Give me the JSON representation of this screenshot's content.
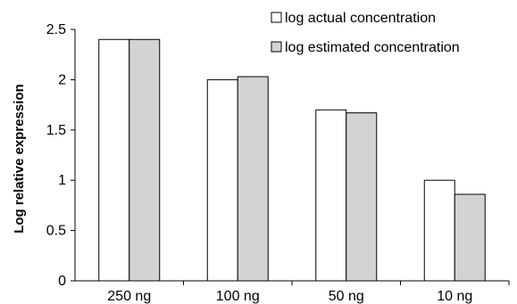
{
  "chart_data": {
    "type": "bar",
    "categories": [
      "250 ng",
      "100 ng",
      "50 ng",
      "10 ng"
    ],
    "series": [
      {
        "name": "log actual concentration",
        "values": [
          2.4,
          2.0,
          1.7,
          1.0
        ],
        "color": "#ffffff"
      },
      {
        "name": "log estimated concentration",
        "values": [
          2.4,
          2.03,
          1.67,
          0.86
        ],
        "color": "#d3d3d3"
      }
    ],
    "title": "",
    "xlabel": "",
    "ylabel": "Log relative expression",
    "ylim": [
      0,
      2.5
    ],
    "yticks": [
      "0",
      "0.5",
      "1",
      "1.5",
      "2",
      "2.5"
    ],
    "grid": false,
    "legend_position": "top-right"
  }
}
